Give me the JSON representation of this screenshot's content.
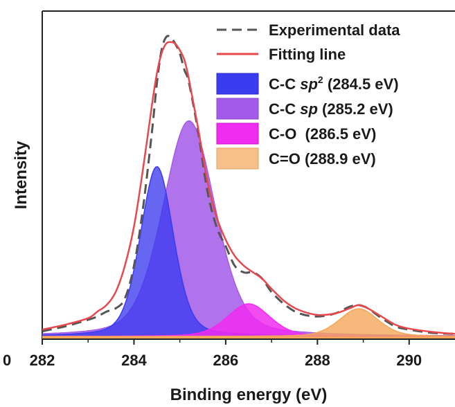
{
  "chart_data": {
    "type": "area",
    "title": "",
    "xlabel": "Binding energy (eV)",
    "ylabel": "Intensity",
    "xlim": [
      282,
      291
    ],
    "ylim": [
      0,
      1.0
    ],
    "xticks": [
      282,
      284,
      286,
      288,
      290
    ],
    "xtick_labels": [
      "282",
      "284",
      "286",
      "288",
      "290"
    ],
    "left_edge_tick_fragment": "0",
    "legend_position": "top-right",
    "series": [
      {
        "name": "Experimental data",
        "style": "dashed-line",
        "color": "#555555",
        "x": [
          282,
          282.5,
          283,
          283.2,
          283.4,
          283.6,
          283.8,
          284,
          284.2,
          284.4,
          284.5,
          284.6,
          284.7,
          284.8,
          284.9,
          285,
          285.1,
          285.2,
          285.4,
          285.6,
          285.8,
          286,
          286.2,
          286.4,
          286.6,
          286.8,
          287,
          287.3,
          287.6,
          288,
          288.4,
          288.7,
          288.9,
          289.1,
          289.4,
          289.7,
          290,
          290.5,
          291
        ],
        "y": [
          0.02,
          0.035,
          0.055,
          0.065,
          0.08,
          0.09,
          0.12,
          0.22,
          0.4,
          0.64,
          0.78,
          0.88,
          0.92,
          0.92,
          0.9,
          0.87,
          0.82,
          0.78,
          0.63,
          0.45,
          0.34,
          0.28,
          0.22,
          0.2,
          0.2,
          0.18,
          0.14,
          0.1,
          0.075,
          0.065,
          0.075,
          0.095,
          0.1,
          0.09,
          0.06,
          0.035,
          0.025,
          0.015,
          0.012
        ]
      },
      {
        "name": "Fitting line",
        "style": "line",
        "color": "#e8474b",
        "x": [
          282,
          282.5,
          283,
          283.2,
          283.4,
          283.6,
          283.8,
          284,
          284.2,
          284.4,
          284.5,
          284.6,
          284.7,
          284.8,
          284.9,
          285,
          285.1,
          285.2,
          285.4,
          285.6,
          285.8,
          286,
          286.2,
          286.4,
          286.6,
          286.8,
          287,
          287.3,
          287.6,
          288,
          288.4,
          288.7,
          288.9,
          289.1,
          289.4,
          289.7,
          290,
          290.5,
          291
        ],
        "y": [
          0.025,
          0.04,
          0.06,
          0.08,
          0.1,
          0.14,
          0.22,
          0.34,
          0.52,
          0.72,
          0.81,
          0.87,
          0.9,
          0.905,
          0.9,
          0.88,
          0.85,
          0.79,
          0.64,
          0.48,
          0.37,
          0.3,
          0.25,
          0.22,
          0.2,
          0.18,
          0.15,
          0.11,
          0.085,
          0.07,
          0.075,
          0.09,
          0.1,
          0.09,
          0.065,
          0.04,
          0.028,
          0.018,
          0.012
        ]
      },
      {
        "name": "C-C sp2 (284.5 eV)",
        "style": "filled-peak",
        "color": "#3b3bf0",
        "center": 284.5,
        "height": 0.52,
        "fwhm": 0.85
      },
      {
        "name": "C-C sp (285.2 eV)",
        "style": "filled-peak",
        "color": "#a25ae8",
        "center": 285.2,
        "height": 0.66,
        "fwhm": 1.35
      },
      {
        "name": "C-O (286.5 eV)",
        "style": "filled-peak",
        "color": "#f02cf0",
        "center": 286.5,
        "height": 0.1,
        "fwhm": 1.1
      },
      {
        "name": "C=O (288.9 eV)",
        "style": "filled-peak",
        "color": "#f5a65a",
        "center": 288.9,
        "height": 0.085,
        "fwhm": 1.0
      }
    ],
    "legend": {
      "experimental": "Experimental data",
      "fitting": "Fitting line",
      "sp2_prefix": "C-C ",
      "sp2_italic": "sp",
      "sp2_sup": "2",
      "sp2_suffix": " (284.5 eV)",
      "sp_prefix": "C-C ",
      "sp_italic": "sp",
      "sp_suffix": " (285.2 eV)",
      "co": "C-O  (286.5 eV)",
      "c_eq_o": "C=O (288.9 eV)"
    }
  }
}
